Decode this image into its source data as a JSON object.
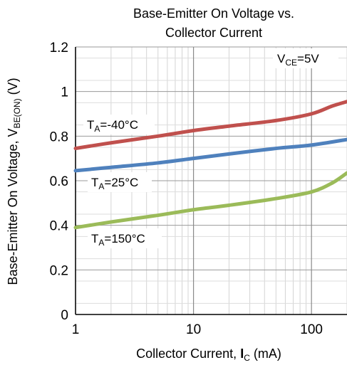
{
  "chart_data": {
    "type": "line",
    "title": [
      "Base-Emitter On Voltage vs.",
      "Collector Current"
    ],
    "xlabel": {
      "text": "Collector Current, ",
      "symbol": "I",
      "subscript": "C",
      "unit": " (mA)"
    },
    "ylabel": {
      "text": "Base-Emitter On Voltage, ",
      "symbol": "V",
      "subscript": "BE(ON)",
      "unit": " (V)"
    },
    "x_scale": "log",
    "xlim": [
      1,
      200
    ],
    "ylim": [
      0,
      1.2
    ],
    "x_ticks": [
      {
        "value": 1,
        "label": "1"
      },
      {
        "value": 10,
        "label": "10"
      },
      {
        "value": 100,
        "label": "100"
      }
    ],
    "y_ticks": [
      {
        "value": 0,
        "label": "0"
      },
      {
        "value": 0.2,
        "label": "0.2"
      },
      {
        "value": 0.4,
        "label": "0.4"
      },
      {
        "value": 0.6,
        "label": "0.6"
      },
      {
        "value": 0.8,
        "label": "0.8"
      },
      {
        "value": 1.0,
        "label": "1"
      },
      {
        "value": 1.2,
        "label": "1.2"
      }
    ],
    "grid": true,
    "condition": {
      "symbol": "V",
      "subscript": "CE",
      "value": "=5V"
    },
    "series": [
      {
        "name": {
          "symbol": "T",
          "subscript": "A",
          "value": "=-40°C"
        },
        "color": "#c0504d",
        "x": [
          1,
          2,
          5,
          10,
          20,
          50,
          100,
          150,
          200
        ],
        "y": [
          0.745,
          0.77,
          0.8,
          0.825,
          0.845,
          0.87,
          0.9,
          0.935,
          0.955
        ]
      },
      {
        "name": {
          "symbol": "T",
          "subscript": "A",
          "value": "=25°C"
        },
        "color": "#4f81bd",
        "x": [
          1,
          2,
          5,
          10,
          20,
          50,
          100,
          200
        ],
        "y": [
          0.645,
          0.66,
          0.68,
          0.7,
          0.72,
          0.745,
          0.76,
          0.785
        ]
      },
      {
        "name": {
          "symbol": "T",
          "subscript": "A",
          "value": "=150°C"
        },
        "color": "#9bbb59",
        "x": [
          1,
          2,
          5,
          10,
          20,
          50,
          100,
          150,
          200
        ],
        "y": [
          0.39,
          0.415,
          0.445,
          0.47,
          0.49,
          0.52,
          0.55,
          0.59,
          0.635
        ]
      }
    ]
  }
}
